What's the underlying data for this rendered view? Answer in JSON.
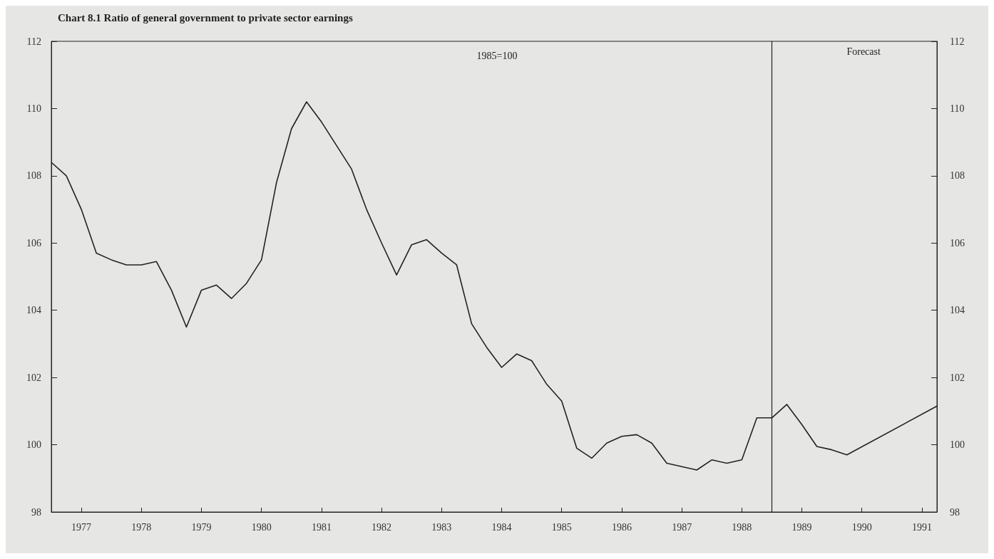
{
  "chart_data": {
    "type": "line",
    "title": "Chart 8.1 Ratio of general government to private sector earnings",
    "subtitle": "1985=100",
    "x": [
      1977,
      1977.25,
      1977.5,
      1977.75,
      1978,
      1978.25,
      1978.5,
      1978.75,
      1979,
      1979.25,
      1979.5,
      1979.75,
      1980,
      1980.25,
      1980.5,
      1980.75,
      1981,
      1981.25,
      1981.5,
      1981.75,
      1982,
      1982.25,
      1982.5,
      1982.75,
      1983,
      1983.25,
      1983.5,
      1983.75,
      1984,
      1984.25,
      1984.5,
      1984.75,
      1985,
      1985.25,
      1985.5,
      1985.75,
      1986,
      1986.25,
      1986.5,
      1986.75,
      1987,
      1987.25,
      1987.5,
      1987.75,
      1988,
      1988.25,
      1988.5,
      1988.75,
      1989,
      1989.25,
      1989.5,
      1989.75,
      1990,
      1990.25,
      1991.75
    ],
    "series": [
      {
        "color": "#222222",
        "values": [
          108.4,
          108,
          107,
          105.7,
          105.5,
          105.35,
          105.35,
          105.45,
          104.6,
          103.5,
          104.6,
          104.75,
          104.35,
          104.8,
          105.5,
          107.8,
          109.4,
          110.2,
          109.6,
          108.9,
          108.2,
          107,
          106,
          105.05,
          105.95,
          106.1,
          105.7,
          105.35,
          103.6,
          102.9,
          102.3,
          102.7,
          102.5,
          101.8,
          101.3,
          99.9,
          99.6,
          100.05,
          100.25,
          100.3,
          100.05,
          99.45,
          99.35,
          99.25,
          99.55,
          99.45,
          99.55,
          100.8,
          100.8,
          101.2,
          100.6,
          99.95,
          99.85,
          99.7,
          101.15
        ]
      }
    ],
    "xlim": [
      1977,
      1991.75
    ],
    "xticks": [
      {
        "value": 1977.5,
        "label": "1977"
      },
      {
        "value": 1978.5,
        "label": "1978"
      },
      {
        "value": 1979.5,
        "label": "1979"
      },
      {
        "value": 1980.5,
        "label": "1980"
      },
      {
        "value": 1981.5,
        "label": "1981"
      },
      {
        "value": 1982.5,
        "label": "1982"
      },
      {
        "value": 1983.5,
        "label": "1983"
      },
      {
        "value": 1984.5,
        "label": "1984"
      },
      {
        "value": 1985.5,
        "label": "1985"
      },
      {
        "value": 1986.5,
        "label": "1986"
      },
      {
        "value": 1987.5,
        "label": "1987"
      },
      {
        "value": 1988.5,
        "label": "1988"
      },
      {
        "value": 1989.5,
        "label": "1989"
      },
      {
        "value": 1990.5,
        "label": "1990"
      },
      {
        "value": 1991.5,
        "label": "1991"
      }
    ],
    "ylim": [
      98,
      112
    ],
    "yticks": [
      98,
      100,
      102,
      104,
      106,
      108,
      110,
      112
    ],
    "y2lim": [
      98,
      112
    ],
    "y2ticks": [
      98,
      100,
      102,
      104,
      106,
      108,
      110,
      112
    ],
    "ref_lines": [
      {
        "axis": "x",
        "value": 1989,
        "label": "Forecast",
        "color": "#222222"
      }
    ],
    "grid": false,
    "marker": "none",
    "line_style": "solid"
  }
}
